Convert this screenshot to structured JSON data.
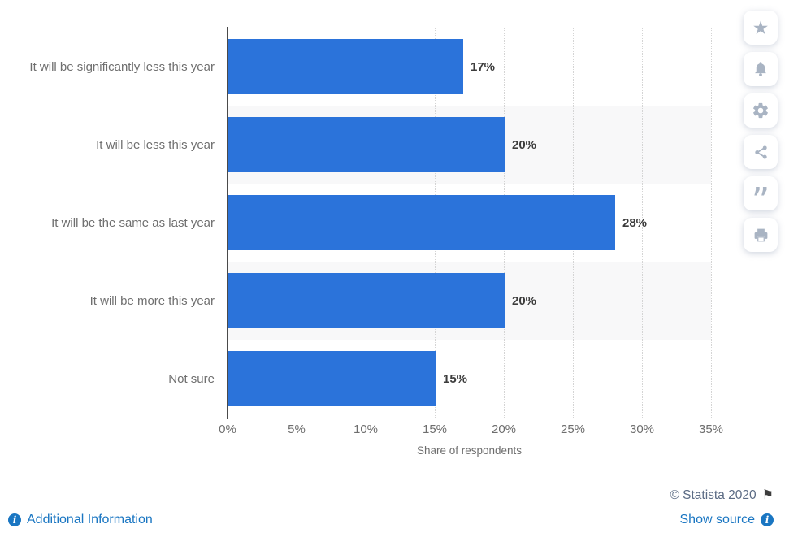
{
  "chart_data": {
    "type": "bar",
    "orientation": "horizontal",
    "title": "",
    "categories": [
      "It will be significantly less this year",
      "It will be less this year",
      "It will be the same as last year",
      "It will be more this year",
      "Not sure"
    ],
    "values": [
      17,
      20,
      28,
      20,
      15
    ],
    "value_labels": [
      "17%",
      "20%",
      "28%",
      "20%",
      "15%"
    ],
    "xlabel": "Share of respondents",
    "x_tick_labels": [
      "0%",
      "5%",
      "10%",
      "15%",
      "20%",
      "25%",
      "30%",
      "35%"
    ],
    "x_tick_values": [
      0,
      5,
      10,
      15,
      20,
      25,
      30,
      35
    ],
    "xlim": [
      0,
      35
    ],
    "grid": "vertical-dotted",
    "legend": "none",
    "bar_color": "#2b73da",
    "band_color": "#f8f8f9",
    "banded_rows": [
      1,
      3
    ]
  },
  "toolbar": {
    "buttons": [
      {
        "name": "favorite",
        "icon": "star-icon"
      },
      {
        "name": "alerts",
        "icon": "bell-icon"
      },
      {
        "name": "settings",
        "icon": "gear-icon"
      },
      {
        "name": "share",
        "icon": "share-icon"
      },
      {
        "name": "cite",
        "icon": "quote-icon"
      },
      {
        "name": "print",
        "icon": "print-icon"
      }
    ]
  },
  "footer": {
    "copyright": "© Statista 2020",
    "additional_info_label": "Additional Information",
    "show_source_label": "Show source",
    "link_color": "#1a76c2"
  }
}
